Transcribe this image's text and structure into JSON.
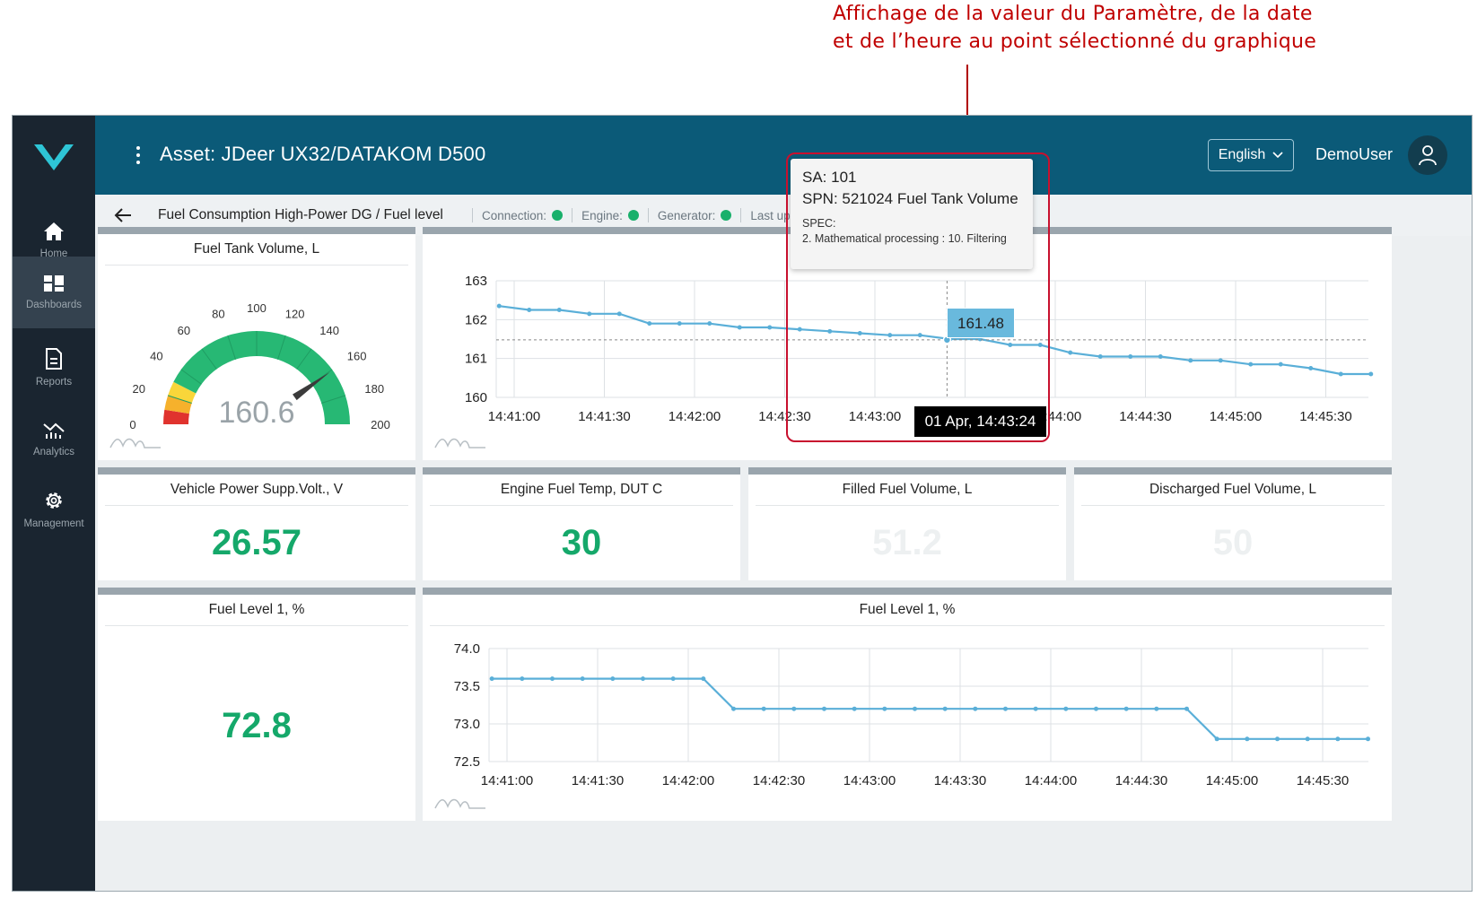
{
  "annotation": {
    "line1": "Affichage de la valeur du Paramètre, de la date",
    "line2": "et  de l’heure au point  sélectionné du graphique"
  },
  "sidebar": {
    "items": [
      {
        "label": "Home",
        "icon": "home-icon"
      },
      {
        "label": "Dashboards",
        "icon": "dashboard-icon"
      },
      {
        "label": "Reports",
        "icon": "report-icon"
      },
      {
        "label": "Analytics",
        "icon": "analytics-icon"
      },
      {
        "label": "Management",
        "icon": "gear-icon"
      }
    ]
  },
  "topbar": {
    "title": "Asset: JDeer UX32/DATAKOM D500",
    "language": "English",
    "user": "DemoUser"
  },
  "subbar": {
    "breadcrumb": "Fuel Consumption High-Power DG / Fuel level",
    "connection": "Connection:",
    "engine": "Engine:",
    "generator": "Generator:",
    "last_update": "Last update:"
  },
  "gauge": {
    "title": "Fuel Tank Volume, L",
    "value": "160.6",
    "value_num": 160.6,
    "min": 0,
    "max": 200,
    "ticks": [
      "0",
      "20",
      "40",
      "60",
      "80",
      "100",
      "120",
      "140",
      "160",
      "180",
      "200"
    ]
  },
  "tooltip": {
    "sa": "SA: 101",
    "spn": "SPN: 521024 Fuel Tank Volume",
    "spec_label": "SPEC:",
    "spec": "2. Mathematical processing : 10. Filtering",
    "value": "161.48",
    "time": "01 Apr, 14:43:24"
  },
  "metrics": [
    {
      "title": "Vehicle Power Supp.Volt., V",
      "value": "26.57",
      "dim": false
    },
    {
      "title": "Engine Fuel Temp, DUT C",
      "value": "30",
      "dim": false
    },
    {
      "title": "Filled Fuel Volume, L",
      "value": "51.2",
      "dim": true
    },
    {
      "title": "Discharged Fuel Volume, L",
      "value": "50",
      "dim": true
    }
  ],
  "fuel_level_card": {
    "title": "Fuel Level 1, %",
    "value": "72.8"
  },
  "chart_data": [
    {
      "type": "line",
      "title": "",
      "xlabel": "",
      "ylabel": "",
      "ylim": [
        160,
        163
      ],
      "yticks": [
        "160",
        "161",
        "162",
        "163"
      ],
      "xticks": [
        "14:41:00",
        "14:41:30",
        "14:42:00",
        "14:42:30",
        "14:43:00",
        "14:43:30",
        "14:44:00",
        "14:44:30",
        "14:45:00",
        "14:45:30"
      ],
      "x": [
        "14:40:55",
        "14:41:05",
        "14:41:15",
        "14:41:25",
        "14:41:35",
        "14:41:45",
        "14:41:55",
        "14:42:05",
        "14:42:15",
        "14:42:25",
        "14:42:35",
        "14:42:45",
        "14:42:55",
        "14:43:05",
        "14:43:15",
        "14:43:25",
        "14:43:35",
        "14:43:45",
        "14:43:55",
        "14:44:05",
        "14:44:15",
        "14:44:25",
        "14:44:35",
        "14:44:45",
        "14:44:55",
        "14:45:05",
        "14:45:15",
        "14:45:25",
        "14:45:35",
        "14:45:45"
      ],
      "series": [
        {
          "values": [
            162.35,
            162.25,
            162.25,
            162.15,
            162.15,
            161.9,
            161.9,
            161.9,
            161.8,
            161.8,
            161.75,
            161.7,
            161.65,
            161.6,
            161.6,
            161.5,
            161.5,
            161.35,
            161.35,
            161.15,
            161.05,
            161.05,
            161.05,
            160.95,
            160.95,
            160.85,
            160.85,
            160.75,
            160.6,
            160.6
          ]
        }
      ],
      "selected": {
        "x": "14:43:24",
        "y": 161.48
      },
      "grid": true,
      "color": "#5aafd8"
    },
    {
      "type": "line",
      "title": "Fuel Level 1, %",
      "xlabel": "",
      "ylabel": "",
      "ylim": [
        72.5,
        74.0
      ],
      "yticks": [
        "72.5",
        "73.0",
        "73.5",
        "74.0"
      ],
      "xticks": [
        "14:41:00",
        "14:41:30",
        "14:42:00",
        "14:42:30",
        "14:43:00",
        "14:43:30",
        "14:44:00",
        "14:44:30",
        "14:45:00",
        "14:45:30"
      ],
      "x": [
        "14:40:55",
        "14:41:05",
        "14:41:15",
        "14:41:25",
        "14:41:35",
        "14:41:45",
        "14:41:55",
        "14:42:05",
        "14:42:15",
        "14:42:25",
        "14:42:35",
        "14:42:45",
        "14:42:55",
        "14:43:05",
        "14:43:15",
        "14:43:25",
        "14:43:35",
        "14:43:45",
        "14:43:55",
        "14:44:05",
        "14:44:15",
        "14:44:25",
        "14:44:35",
        "14:44:45",
        "14:44:55",
        "14:45:05",
        "14:45:15",
        "14:45:25",
        "14:45:35",
        "14:45:45"
      ],
      "series": [
        {
          "values": [
            73.6,
            73.6,
            73.6,
            73.6,
            73.6,
            73.6,
            73.6,
            73.6,
            73.2,
            73.2,
            73.2,
            73.2,
            73.2,
            73.2,
            73.2,
            73.2,
            73.2,
            73.2,
            73.2,
            73.2,
            73.2,
            73.2,
            73.2,
            73.2,
            72.8,
            72.8,
            72.8,
            72.8,
            72.8,
            72.8
          ]
        }
      ],
      "grid": true,
      "color": "#5aafd8"
    }
  ]
}
